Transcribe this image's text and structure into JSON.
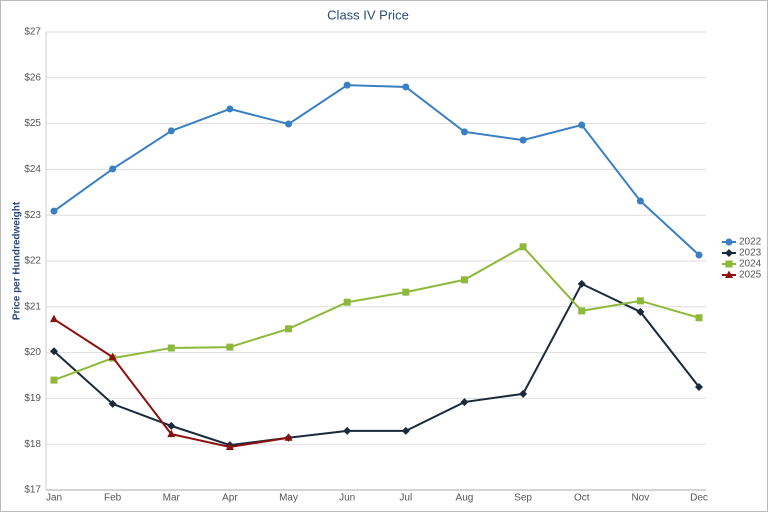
{
  "chart_data": {
    "type": "line",
    "title": "Class IV Price",
    "y_label": "Price per Hundredweight",
    "categories": [
      "Jan",
      "Feb",
      "Mar",
      "Apr",
      "May",
      "Jun",
      "Jul",
      "Aug",
      "Sep",
      "Oct",
      "Nov",
      "Dec"
    ],
    "series": [
      {
        "name": "2022",
        "color": "#3a7fc4",
        "marker": "circle",
        "values": [
          23.09,
          24.01,
          24.84,
          25.32,
          24.99,
          25.84,
          25.8,
          24.82,
          24.64,
          24.97,
          23.31,
          22.13
        ]
      },
      {
        "name": "2023",
        "color": "#1a2a3a",
        "marker": "diamond",
        "values": [
          20.03,
          18.88,
          18.4,
          17.98,
          18.14,
          18.29,
          18.29,
          18.92,
          19.1,
          21.5,
          20.89,
          19.25
        ]
      },
      {
        "name": "2024",
        "color": "#8db83a",
        "marker": "square",
        "values": [
          19.4,
          19.88,
          20.1,
          20.12,
          20.52,
          21.1,
          21.32,
          21.59,
          22.31,
          20.91,
          21.13,
          20.76
        ]
      },
      {
        "name": "2025",
        "color": "#8b1010",
        "marker": "triangle",
        "values": [
          20.73,
          19.9,
          18.22,
          17.94,
          18.14,
          null,
          null,
          null,
          null,
          null,
          null,
          null
        ]
      }
    ],
    "ylim": [
      17,
      27
    ],
    "yticks": [
      {
        "value": 17,
        "label": "$17"
      },
      {
        "value": 18,
        "label": "$18"
      },
      {
        "value": 19,
        "label": "$19"
      },
      {
        "value": 20,
        "label": "$20"
      },
      {
        "value": 21,
        "label": "$21"
      },
      {
        "value": 22,
        "label": "$22"
      },
      {
        "value": 23,
        "label": "$23"
      },
      {
        "value": 24,
        "label": "$24"
      },
      {
        "value": 25,
        "label": "$25"
      },
      {
        "value": 26,
        "label": "$26"
      },
      {
        "value": 27,
        "label": "$27"
      }
    ],
    "grid": true,
    "legend": "right"
  }
}
